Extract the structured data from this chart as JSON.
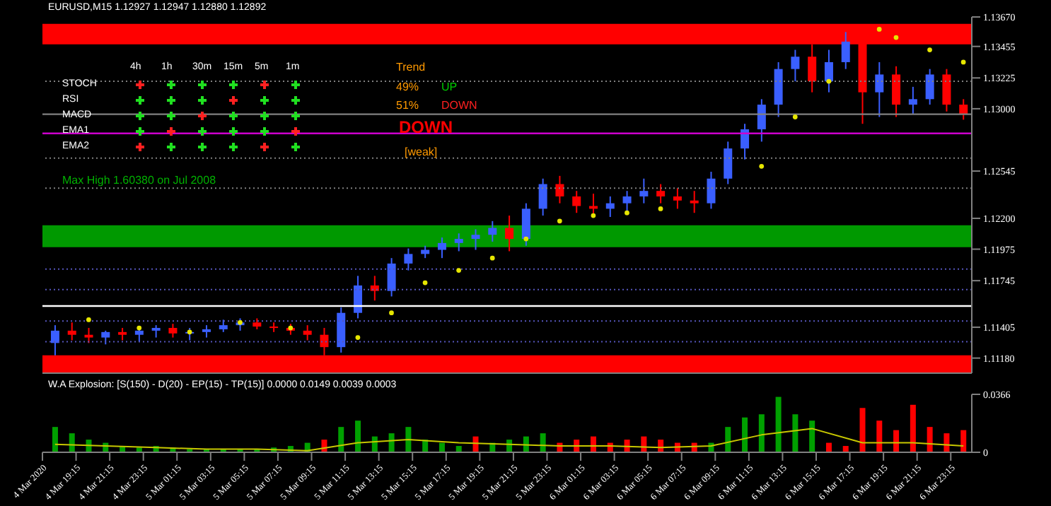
{
  "chart_data": [
    {
      "type": "candlestick",
      "title": "EURUSD,M15  1.12927 1.12947 1.12880 1.12892",
      "x": [
        "2020-03-04T18:00",
        "2020-03-04T19:00",
        "2020-03-04T20:00",
        "2020-03-04T21:00",
        "2020-03-04T22:00",
        "2020-03-04T23:00",
        "2020-03-05T00:00",
        "2020-03-05T01:00",
        "2020-03-05T02:00",
        "2020-03-05T03:00",
        "2020-03-05T04:00",
        "2020-03-05T05:00",
        "2020-03-05T06:00",
        "2020-03-05T07:00",
        "2020-03-05T08:00",
        "2020-03-05T09:00",
        "2020-03-05T10:00",
        "2020-03-05T11:00",
        "2020-03-05T12:00",
        "2020-03-05T13:00",
        "2020-03-05T14:00",
        "2020-03-05T15:00",
        "2020-03-05T16:00",
        "2020-03-05T17:00",
        "2020-03-05T18:00",
        "2020-03-05T19:00",
        "2020-03-05T20:00",
        "2020-03-05T21:00",
        "2020-03-05T22:00",
        "2020-03-05T23:00",
        "2020-03-06T00:00",
        "2020-03-06T01:00",
        "2020-03-06T02:00",
        "2020-03-06T03:00",
        "2020-03-06T04:00",
        "2020-03-06T05:00",
        "2020-03-06T06:00",
        "2020-03-06T07:00",
        "2020-03-06T08:00",
        "2020-03-06T09:00",
        "2020-03-06T10:00",
        "2020-03-06T11:00",
        "2020-03-06T12:00",
        "2020-03-06T13:00",
        "2020-03-06T14:00",
        "2020-03-06T15:00",
        "2020-03-06T16:00",
        "2020-03-06T17:00",
        "2020-03-06T18:00",
        "2020-03-06T19:00",
        "2020-03-06T20:00",
        "2020-03-06T21:00",
        "2020-03-06T22:00",
        "2020-03-06T23:00",
        "2020-03-07T00:00"
      ],
      "ohlc": [
        [
          1.1129,
          1.1142,
          1.112,
          1.1138
        ],
        [
          1.1138,
          1.1144,
          1.1131,
          1.1135
        ],
        [
          1.1135,
          1.114,
          1.1129,
          1.1133
        ],
        [
          1.1133,
          1.1138,
          1.1128,
          1.1137
        ],
        [
          1.1137,
          1.114,
          1.1131,
          1.1135
        ],
        [
          1.1135,
          1.114,
          1.113,
          1.1138
        ],
        [
          1.1138,
          1.1142,
          1.1133,
          1.114
        ],
        [
          1.114,
          1.1143,
          1.1133,
          1.1136
        ],
        [
          1.1136,
          1.114,
          1.1131,
          1.1137
        ],
        [
          1.1137,
          1.1142,
          1.1133,
          1.1139
        ],
        [
          1.1139,
          1.1146,
          1.1137,
          1.1142
        ],
        [
          1.1142,
          1.1147,
          1.1138,
          1.1144
        ],
        [
          1.1144,
          1.1147,
          1.1139,
          1.1141
        ],
        [
          1.1141,
          1.1144,
          1.1137,
          1.114
        ],
        [
          1.114,
          1.1143,
          1.1135,
          1.1138
        ],
        [
          1.1138,
          1.1142,
          1.1131,
          1.1135
        ],
        [
          1.1135,
          1.114,
          1.112,
          1.1126
        ],
        [
          1.1126,
          1.1155,
          1.1122,
          1.1151
        ],
        [
          1.1151,
          1.1178,
          1.1147,
          1.1171
        ],
        [
          1.1171,
          1.1178,
          1.116,
          1.1167
        ],
        [
          1.1167,
          1.1191,
          1.1163,
          1.1187
        ],
        [
          1.1187,
          1.1198,
          1.1182,
          1.1194
        ],
        [
          1.1194,
          1.12,
          1.1191,
          1.1197
        ],
        [
          1.1197,
          1.1206,
          1.1191,
          1.1202
        ],
        [
          1.1202,
          1.1209,
          1.1196,
          1.1205
        ],
        [
          1.1205,
          1.1212,
          1.1197,
          1.1208
        ],
        [
          1.1208,
          1.1218,
          1.1203,
          1.1213
        ],
        [
          1.1213,
          1.1222,
          1.1196,
          1.1205
        ],
        [
          1.1205,
          1.1231,
          1.12,
          1.1227
        ],
        [
          1.1227,
          1.1249,
          1.1222,
          1.1245
        ],
        [
          1.1245,
          1.1251,
          1.1231,
          1.1236
        ],
        [
          1.1236,
          1.124,
          1.1224,
          1.1229
        ],
        [
          1.1229,
          1.1238,
          1.1222,
          1.1227
        ],
        [
          1.1227,
          1.1236,
          1.1221,
          1.1231
        ],
        [
          1.1231,
          1.124,
          1.1224,
          1.1236
        ],
        [
          1.1236,
          1.1249,
          1.1231,
          1.124
        ],
        [
          1.124,
          1.1245,
          1.1231,
          1.1236
        ],
        [
          1.1236,
          1.1242,
          1.1227,
          1.1233
        ],
        [
          1.1233,
          1.124,
          1.1224,
          1.1231
        ],
        [
          1.1231,
          1.1254,
          1.1227,
          1.1249
        ],
        [
          1.1249,
          1.1276,
          1.1245,
          1.1271
        ],
        [
          1.1271,
          1.1289,
          1.1263,
          1.1285
        ],
        [
          1.1285,
          1.1307,
          1.1276,
          1.1303
        ],
        [
          1.1303,
          1.1334,
          1.1294,
          1.1329
        ],
        [
          1.1329,
          1.1343,
          1.132,
          1.1338
        ],
        [
          1.1338,
          1.1347,
          1.1312,
          1.132
        ],
        [
          1.132,
          1.1343,
          1.1312,
          1.1334
        ],
        [
          1.1334,
          1.1356,
          1.1329,
          1.1349
        ],
        [
          1.1349,
          1.1349,
          1.1289,
          1.1312
        ],
        [
          1.1312,
          1.1334,
          1.1294,
          1.1325
        ],
        [
          1.1325,
          1.1331,
          1.1294,
          1.1303
        ],
        [
          1.1303,
          1.1316,
          1.1296,
          1.1307
        ],
        [
          1.1307,
          1.1329,
          1.1303,
          1.1325
        ],
        [
          1.1325,
          1.1329,
          1.1298,
          1.1303
        ],
        [
          1.1303,
          1.1307,
          1.1292,
          1.1296
        ]
      ],
      "colors": [
        "#3a5fff",
        "#ff0000",
        "#ff0000",
        "#3a5fff",
        "#ff0000",
        "#3a5fff",
        "#3a5fff",
        "#ff0000",
        "#3a5fff",
        "#3a5fff",
        "#3a5fff",
        "#3a5fff",
        "#ff0000",
        "#ff0000",
        "#ff0000",
        "#ff0000",
        "#ff0000",
        "#3a5fff",
        "#3a5fff",
        "#ff0000",
        "#3a5fff",
        "#3a5fff",
        "#3a5fff",
        "#3a5fff",
        "#3a5fff",
        "#3a5fff",
        "#3a5fff",
        "#ff0000",
        "#3a5fff",
        "#3a5fff",
        "#ff0000",
        "#ff0000",
        "#ff0000",
        "#3a5fff",
        "#3a5fff",
        "#3a5fff",
        "#ff0000",
        "#ff0000",
        "#ff0000",
        "#3a5fff",
        "#3a5fff",
        "#3a5fff",
        "#3a5fff",
        "#3a5fff",
        "#3a5fff",
        "#ff0000",
        "#3a5fff",
        "#3a5fff",
        "#ff0000",
        "#3a5fff",
        "#ff0000",
        "#3a5fff",
        "#3a5fff",
        "#ff0000",
        "#ff0000"
      ],
      "series": [
        {
          "type": "scatter",
          "marker": "circle",
          "color": "#e6e600",
          "x": [
            "2020-03-04T20:00",
            "2020-03-04T23:00",
            "2020-03-05T02:00",
            "2020-03-05T05:00",
            "2020-03-05T08:00",
            "2020-03-05T12:00",
            "2020-03-05T14:00",
            "2020-03-05T16:00",
            "2020-03-05T18:00",
            "2020-03-05T20:00",
            "2020-03-05T22:00",
            "2020-03-06T00:00",
            "2020-03-06T02:00",
            "2020-03-06T04:00",
            "2020-03-06T06:00",
            "2020-03-06T12:00",
            "2020-03-06T14:00",
            "2020-03-06T16:00",
            "2020-03-06T19:00",
            "2020-03-06T20:00",
            "2020-03-06T22:00",
            "2020-03-07T00:00"
          ],
          "values": [
            1.1146,
            1.114,
            1.1137,
            1.1144,
            1.114,
            1.1133,
            1.1151,
            1.1173,
            1.1182,
            1.1191,
            1.1205,
            1.1218,
            1.1222,
            1.1224,
            1.1227,
            1.1258,
            1.1294,
            1.132,
            1.1358,
            1.1352,
            1.1343,
            1.1334
          ]
        }
      ],
      "xlim": [
        "2020-03-04T17:15",
        "2020-03-07T00:30"
      ],
      "ylim": [
        1.1107,
        1.1367
      ],
      "yticks": [
        {
          "value": 1.1367,
          "label": "1.13670"
        },
        {
          "value": 1.13455,
          "label": "1.13455"
        },
        {
          "value": 1.13225,
          "label": "1.13225"
        },
        {
          "value": 1.13,
          "label": "1.13000"
        },
        {
          "value": 1.12545,
          "label": "1.12545"
        },
        {
          "value": 1.122,
          "label": "1.12200"
        },
        {
          "value": 1.11975,
          "label": "1.11975"
        },
        {
          "value": 1.11745,
          "label": "1.11745"
        },
        {
          "value": 1.11405,
          "label": "1.11405"
        },
        {
          "value": 1.1118,
          "label": "1.11180"
        }
      ],
      "tick_labels": "y",
      "bands": [
        {
          "axis": "y",
          "from": 1.1347,
          "to": 1.1362,
          "color": "#ff0000"
        },
        {
          "axis": "y",
          "from": 1.1199,
          "to": 1.1215,
          "color": "#009900"
        },
        {
          "axis": "y",
          "from": 1.1107,
          "to": 1.112,
          "color": "#ff0000"
        }
      ],
      "ref_lines": [
        {
          "axis": "y",
          "value": 1.1296,
          "color": "#808080",
          "line_style": "solid"
        },
        {
          "axis": "y",
          "value": 1.1282,
          "color": "#cc00cc",
          "line_style": "solid"
        },
        {
          "axis": "y",
          "value": 1.1156,
          "color": "#ffffff",
          "line_style": "solid"
        },
        {
          "axis": "y",
          "value": 1.132,
          "color": "#808080",
          "line_style": "dotted"
        },
        {
          "axis": "y",
          "value": 1.1264,
          "color": "#808080",
          "line_style": "dotted"
        },
        {
          "axis": "y",
          "value": 1.1242,
          "color": "#808080",
          "line_style": "dotted"
        },
        {
          "axis": "y",
          "value": 1.1183,
          "color": "#5555bb",
          "line_style": "dotted"
        },
        {
          "axis": "y",
          "value": 1.1168,
          "color": "#5555bb",
          "line_style": "dotted"
        },
        {
          "axis": "y",
          "value": 1.1145,
          "color": "#5555bb",
          "line_style": "dotted"
        },
        {
          "axis": "y",
          "value": 1.113,
          "color": "#5555bb",
          "line_style": "dotted"
        }
      ],
      "annotations": [
        "4h",
        "1h",
        "30m",
        "15m",
        "5m",
        "1m",
        "STOCH",
        "RSI",
        "MACD",
        "EMA1",
        "EMA2",
        "Trend",
        "49%",
        "UP",
        "51%",
        "DOWN",
        "DOWN",
        "[weak]",
        "Max High 1.60380 on Jul 2008"
      ]
    },
    {
      "type": "bar",
      "title": "W.A Explosion: [S(150) - D(20) - EP(15) - TP(15)] 0.0000 0.0149 0.0039 0.0003",
      "x": [
        "2020-03-04T18:00",
        "2020-03-04T19:00",
        "2020-03-04T20:00",
        "2020-03-04T21:00",
        "2020-03-04T22:00",
        "2020-03-04T23:00",
        "2020-03-05T00:00",
        "2020-03-05T01:00",
        "2020-03-05T02:00",
        "2020-03-05T03:00",
        "2020-03-05T04:00",
        "2020-03-05T05:00",
        "2020-03-05T06:00",
        "2020-03-05T07:00",
        "2020-03-05T08:00",
        "2020-03-05T09:00",
        "2020-03-05T10:00",
        "2020-03-05T11:00",
        "2020-03-05T12:00",
        "2020-03-05T13:00",
        "2020-03-05T14:00",
        "2020-03-05T15:00",
        "2020-03-05T16:00",
        "2020-03-05T17:00",
        "2020-03-05T18:00",
        "2020-03-05T19:00",
        "2020-03-05T20:00",
        "2020-03-05T21:00",
        "2020-03-05T22:00",
        "2020-03-05T23:00",
        "2020-03-06T00:00",
        "2020-03-06T01:00",
        "2020-03-06T02:00",
        "2020-03-06T03:00",
        "2020-03-06T04:00",
        "2020-03-06T05:00",
        "2020-03-06T06:00",
        "2020-03-06T07:00",
        "2020-03-06T08:00",
        "2020-03-06T09:00",
        "2020-03-06T10:00",
        "2020-03-06T11:00",
        "2020-03-06T12:00",
        "2020-03-06T13:00",
        "2020-03-06T14:00",
        "2020-03-06T15:00",
        "2020-03-06T16:00",
        "2020-03-06T17:00",
        "2020-03-06T18:00",
        "2020-03-06T19:00",
        "2020-03-06T20:00",
        "2020-03-06T21:00",
        "2020-03-06T22:00",
        "2020-03-06T23:00",
        "2020-03-07T00:00"
      ],
      "values": [
        0.016,
        0.012,
        0.008,
        0.006,
        0.004,
        0.003,
        0.004,
        0.003,
        0.002,
        0.002,
        0.002,
        0.002,
        0.002,
        0.003,
        0.004,
        0.006,
        0.008,
        0.016,
        0.02,
        0.01,
        0.012,
        0.016,
        0.008,
        0.006,
        0.004,
        0.01,
        0.006,
        0.008,
        0.01,
        0.012,
        0.006,
        0.008,
        0.01,
        0.006,
        0.008,
        0.01,
        0.008,
        0.006,
        0.006,
        0.006,
        0.016,
        0.022,
        0.024,
        0.035,
        0.024,
        0.02,
        0.006,
        0.004,
        0.028,
        0.02,
        0.014,
        0.03,
        0.016,
        0.012,
        0.014
      ],
      "colors": [
        "#00a000",
        "#00a000",
        "#00a000",
        "#00a000",
        "#00a000",
        "#00a000",
        "#00a000",
        "#00a000",
        "#00a000",
        "#00a000",
        "#00a000",
        "#00a000",
        "#00a000",
        "#00a000",
        "#00a000",
        "#00a000",
        "#ff0000",
        "#00a000",
        "#00a000",
        "#00a000",
        "#00a000",
        "#00a000",
        "#00a000",
        "#00a000",
        "#00a000",
        "#ff0000",
        "#00a000",
        "#00a000",
        "#00a000",
        "#00a000",
        "#ff0000",
        "#ff0000",
        "#ff0000",
        "#ff0000",
        "#ff0000",
        "#ff0000",
        "#ff0000",
        "#ff0000",
        "#ff0000",
        "#00a000",
        "#00a000",
        "#00a000",
        "#00a000",
        "#00a000",
        "#00a000",
        "#00a000",
        "#ff0000",
        "#ff0000",
        "#ff0000",
        "#ff0000",
        "#ff0000",
        "#ff0000",
        "#ff0000",
        "#ff0000",
        "#ff0000"
      ],
      "series": [
        {
          "type": "line",
          "color": "#c8c800",
          "x": [
            "2020-03-04T18:00",
            "2020-03-04T21:00",
            "2020-03-05T00:00",
            "2020-03-05T03:00",
            "2020-03-05T06:00",
            "2020-03-05T09:00",
            "2020-03-05T12:00",
            "2020-03-05T15:00",
            "2020-03-05T18:00",
            "2020-03-05T21:00",
            "2020-03-06T00:00",
            "2020-03-06T03:00",
            "2020-03-06T06:00",
            "2020-03-06T09:00",
            "2020-03-06T12:00",
            "2020-03-06T15:00",
            "2020-03-06T18:00",
            "2020-03-06T21:00",
            "2020-03-07T00:00"
          ],
          "values": [
            0.005,
            0.004,
            0.003,
            0.002,
            0.002,
            0.001,
            0.006,
            0.008,
            0.006,
            0.005,
            0.004,
            0.004,
            0.003,
            0.004,
            0.011,
            0.015,
            0.006,
            0.006,
            0.004
          ]
        }
      ],
      "xlim": [
        "2020-03-04T17:15",
        "2020-03-07T00:30"
      ],
      "ylim": [
        0,
        0.0366
      ],
      "yticks": [
        0,
        0.0366
      ],
      "xticks": [
        {
          "value": "2020-03-04T17:15",
          "label": "4 Mar 2020"
        },
        {
          "value": "2020-03-04T19:15",
          "label": "4 Mar 19:15"
        },
        {
          "value": "2020-03-04T21:15",
          "label": "4 Mar 21:15"
        },
        {
          "value": "2020-03-04T23:15",
          "label": "4 Mar 23:15"
        },
        {
          "value": "2020-03-05T01:15",
          "label": "5 Mar 01:15"
        },
        {
          "value": "2020-03-05T03:15",
          "label": "5 Mar 03:15"
        },
        {
          "value": "2020-03-05T05:15",
          "label": "5 Mar 05:15"
        },
        {
          "value": "2020-03-05T07:15",
          "label": "5 Mar 07:15"
        },
        {
          "value": "2020-03-05T09:15",
          "label": "5 Mar 09:15"
        },
        {
          "value": "2020-03-05T11:15",
          "label": "5 Mar 11:15"
        },
        {
          "value": "2020-03-05T13:15",
          "label": "5 Mar 13:15"
        },
        {
          "value": "2020-03-05T15:15",
          "label": "5 Mar 15:15"
        },
        {
          "value": "2020-03-05T17:15",
          "label": "5 Mar 17:15"
        },
        {
          "value": "2020-03-05T19:15",
          "label": "5 Mar 19:15"
        },
        {
          "value": "2020-03-05T21:15",
          "label": "5 Mar 21:15"
        },
        {
          "value": "2020-03-05T23:15",
          "label": "5 Mar 23:15"
        },
        {
          "value": "2020-03-06T01:15",
          "label": "6 Mar 01:15"
        },
        {
          "value": "2020-03-06T03:15",
          "label": "6 Mar 03:15"
        },
        {
          "value": "2020-03-06T05:15",
          "label": "6 Mar 05:15"
        },
        {
          "value": "2020-03-06T07:15",
          "label": "6 Mar 07:15"
        },
        {
          "value": "2020-03-06T09:15",
          "label": "6 Mar 09:15"
        },
        {
          "value": "2020-03-06T11:15",
          "label": "6 Mar 11:15"
        },
        {
          "value": "2020-03-06T13:15",
          "label": "6 Mar 13:15"
        },
        {
          "value": "2020-03-06T15:15",
          "label": "6 Mar 15:15"
        },
        {
          "value": "2020-03-06T17:15",
          "label": "6 Mar 17:15"
        },
        {
          "value": "2020-03-06T19:15",
          "label": "6 Mar 19:15"
        },
        {
          "value": "2020-03-06T21:15",
          "label": "6 Mar 21:15"
        },
        {
          "value": "2020-03-06T23:15",
          "label": "6 Mar 23:15"
        }
      ]
    }
  ]
}
